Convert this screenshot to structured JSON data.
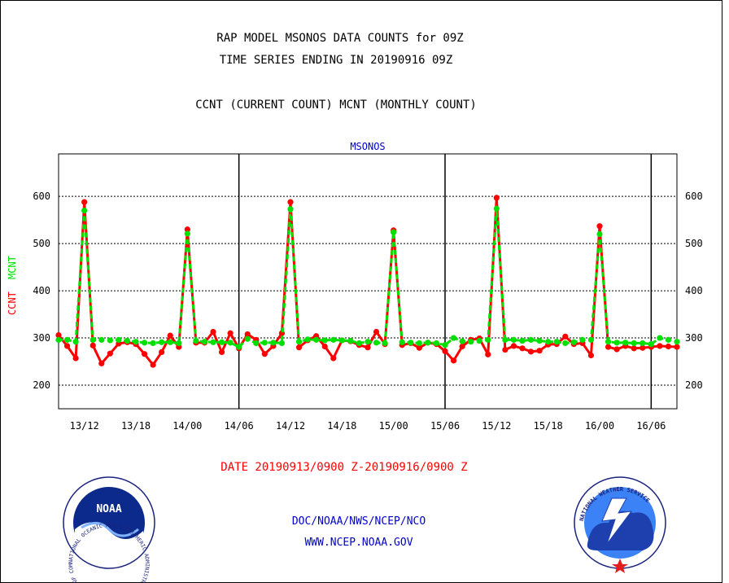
{
  "header": {
    "title_line1": "RAP MODEL MSONOS DATA COUNTS for 09Z",
    "title_line2": "TIME SERIES ENDING IN 20190916 09Z",
    "subtitle": "CCNT (CURRENT COUNT) MCNT (MONTHLY COUNT)"
  },
  "footer": {
    "date_range": "DATE 20190913/0900 Z-20190916/0900 Z",
    "agency_path": "DOC/NOAA/NWS/NCEP/NCO",
    "website": "WWW.NCEP.NOAA.GOV"
  },
  "logos": {
    "noaa_text": "NOAA",
    "noaa_ring_text": "NATIONAL OCEANIC AND ATMOSPHERIC ADMINISTRATION · U.S. DEPARTMENT OF COMMERCE ·",
    "nws_ring_text": "NATIONAL WEATHER SERVICE"
  },
  "colors": {
    "ccnt": "#ff0000",
    "mcnt": "#00e000",
    "title_text": "#000000",
    "plot_title": "#0000cc",
    "date_text": "#ff0000",
    "footer_text": "#0000cc",
    "grid": "#000000"
  },
  "chart_data": {
    "type": "line",
    "title": "MSONOS",
    "ylabel_series": [
      "CCNT",
      "MCNT"
    ],
    "ylim": [
      150,
      690
    ],
    "yticks": [
      200,
      300,
      400,
      500,
      600
    ],
    "ygrid": true,
    "xlim": [
      0,
      72
    ],
    "xticks": [
      {
        "x": 3,
        "label": "13/12"
      },
      {
        "x": 9,
        "label": "13/18"
      },
      {
        "x": 15,
        "label": "14/00"
      },
      {
        "x": 21,
        "label": "14/06"
      },
      {
        "x": 27,
        "label": "14/12"
      },
      {
        "x": 33,
        "label": "14/18"
      },
      {
        "x": 39,
        "label": "15/00"
      },
      {
        "x": 45,
        "label": "15/06"
      },
      {
        "x": 51,
        "label": "15/12"
      },
      {
        "x": 57,
        "label": "15/18"
      },
      {
        "x": 63,
        "label": "16/00"
      },
      {
        "x": 69,
        "label": "16/06"
      }
    ],
    "vertical_lines_x": [
      21,
      45,
      69
    ],
    "series": [
      {
        "name": "CCNT",
        "color": "#ff0000",
        "x": [
          0,
          1,
          2,
          3,
          4,
          5,
          6,
          7,
          8,
          9,
          10,
          11,
          12,
          13,
          14,
          15,
          16,
          17,
          18,
          19,
          20,
          21,
          22,
          23,
          24,
          25,
          26,
          27,
          28,
          29,
          30,
          31,
          32,
          33,
          34,
          35,
          36,
          37,
          38,
          39,
          40,
          41,
          42,
          43,
          44,
          45,
          46,
          47,
          48,
          49,
          50,
          51,
          52,
          53,
          54,
          55,
          56,
          57,
          58,
          59,
          60,
          61,
          62,
          63,
          64,
          65,
          66,
          67,
          68,
          69,
          70,
          71,
          72
        ],
        "values": [
          306,
          283,
          257,
          588,
          284,
          246,
          267,
          288,
          291,
          287,
          266,
          243,
          270,
          305,
          281,
          530,
          290,
          290,
          313,
          270,
          310,
          278,
          308,
          296,
          266,
          283,
          310,
          588,
          280,
          295,
          304,
          282,
          257,
          295,
          293,
          285,
          280,
          313,
          287,
          528,
          285,
          289,
          279,
          290,
          287,
          272,
          252,
          282,
          296,
          299,
          265,
          597,
          275,
          283,
          278,
          271,
          273,
          286,
          287,
          303,
          287,
          289,
          263,
          537,
          281,
          276,
          283,
          278,
          279,
          281,
          283,
          282,
          281
        ]
      },
      {
        "name": "MCNT",
        "color": "#00e000",
        "x": [
          0,
          1,
          2,
          3,
          4,
          5,
          6,
          7,
          8,
          9,
          10,
          11,
          12,
          13,
          14,
          15,
          16,
          17,
          18,
          19,
          20,
          21,
          22,
          23,
          24,
          25,
          26,
          27,
          28,
          29,
          30,
          31,
          32,
          33,
          34,
          35,
          36,
          37,
          38,
          39,
          40,
          41,
          42,
          43,
          44,
          45,
          46,
          47,
          48,
          49,
          50,
          51,
          52,
          53,
          54,
          55,
          56,
          57,
          58,
          59,
          60,
          61,
          62,
          63,
          64,
          65,
          66,
          67,
          68,
          69,
          70,
          71,
          72
        ],
        "values": [
          296,
          296,
          292,
          570,
          296,
          296,
          295,
          296,
          294,
          292,
          290,
          289,
          291,
          291,
          289,
          521,
          294,
          292,
          291,
          291,
          290,
          281,
          298,
          289,
          290,
          290,
          289,
          573,
          292,
          297,
          296,
          295,
          296,
          295,
          294,
          289,
          292,
          290,
          289,
          524,
          291,
          290,
          289,
          290,
          289,
          285,
          300,
          293,
          292,
          294,
          296,
          574,
          296,
          296,
          294,
          296,
          294,
          292,
          292,
          289,
          291,
          296,
          296,
          520,
          292,
          290,
          290,
          289,
          289,
          287,
          300,
          296,
          292
        ]
      }
    ]
  }
}
